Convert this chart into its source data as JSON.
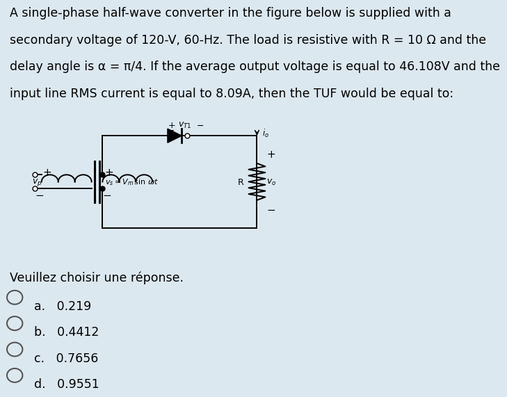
{
  "bg_color": "#dce8f0",
  "title_lines": [
    "A single-phase half-wave converter in the figure below is supplied with a",
    "secondary voltage of 120-V, 60-Hz. The load is resistive with R = 10 Ω and the",
    "delay angle is α = π/4. If the average output voltage is equal to 46.108V and the",
    "input line RMS current is equal to 8.09A, then the TUF would be equal to:"
  ],
  "prompt": "Veuillez choisir une réponse.",
  "options": [
    "a.   0.219",
    "b.   0.4412",
    "c.   0.7656",
    "d.   0.9551"
  ],
  "title_fontsize": 12.5,
  "option_fontsize": 12.5,
  "prompt_fontsize": 12.5
}
